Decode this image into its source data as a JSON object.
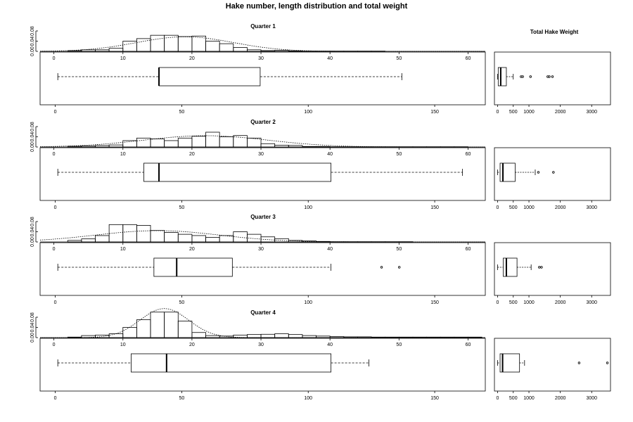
{
  "figure_title": "Hake number, length distribution and total weight",
  "weight_title": "Total Hake Weight",
  "chart_data": [
    {
      "type": "bar",
      "title": "Quarter 1",
      "hist_bins": [
        2,
        4,
        6,
        8,
        10,
        12,
        14,
        16,
        18,
        20,
        22,
        24,
        26,
        28,
        30,
        32,
        34,
        36,
        38,
        40,
        42,
        44,
        46,
        48,
        50,
        52,
        54
      ],
      "hist_density": [
        0.003,
        0.006,
        0.006,
        0.012,
        0.04,
        0.05,
        0.063,
        0.063,
        0.058,
        0.06,
        0.04,
        0.03,
        0.015,
        0.006,
        0.003,
        0.004,
        0.002,
        0.001,
        0.001,
        0.001,
        0.001,
        0.001,
        0.001,
        0,
        0,
        0
      ],
      "density_curve": {
        "mean": 19,
        "sd": 7
      },
      "hist_ylim": [
        0,
        0.08
      ],
      "hist_yticks": [
        "0.00",
        "0.04",
        "0.08"
      ],
      "hist_xlim": [
        -2,
        62.5
      ],
      "hist_xticks": [
        0,
        10,
        20,
        30,
        40,
        50,
        60
      ],
      "box": {
        "min": 1,
        "q1": 41,
        "median": 41,
        "q3": 81,
        "max": 137,
        "outliers": []
      },
      "box_xlim": [
        -6,
        170
      ],
      "box_xticks": [
        0,
        50,
        100,
        150
      ],
      "weight_box": {
        "min": 0,
        "q1": 20,
        "median": 100,
        "q3": 280,
        "max": 500,
        "outliers": [
          750,
          800,
          1050,
          1600,
          1650,
          1750
        ]
      },
      "weight_xlim": [
        -100,
        3600
      ],
      "weight_xticks": [
        0,
        500,
        1000,
        2000,
        3000
      ]
    },
    {
      "type": "bar",
      "title": "Quarter 2",
      "hist_bins": [
        2,
        4,
        6,
        8,
        10,
        12,
        14,
        16,
        18,
        20,
        22,
        24,
        26,
        28,
        30,
        32,
        34,
        36,
        38,
        40,
        42,
        44,
        46,
        48,
        50,
        52,
        54,
        56,
        58,
        60
      ],
      "hist_density": [
        0.003,
        0.004,
        0.006,
        0.008,
        0.025,
        0.035,
        0.032,
        0.025,
        0.035,
        0.042,
        0.058,
        0.04,
        0.045,
        0.035,
        0.013,
        0.007,
        0.006,
        0.002,
        0.002,
        0.001,
        0.001,
        0.001,
        0.001,
        0.001,
        0.001,
        0.001,
        0.001,
        0.001,
        0.001
      ],
      "density_curve": {
        "mean": 22,
        "sd": 9
      },
      "hist_ylim": [
        0,
        0.08
      ],
      "hist_yticks": [
        "0.00",
        "0.04",
        "0.08"
      ],
      "hist_xlim": [
        -2,
        62.5
      ],
      "hist_xticks": [
        0,
        10,
        20,
        30,
        40,
        50,
        60
      ],
      "box": {
        "min": 1,
        "q1": 35,
        "median": 41,
        "q3": 109,
        "max": 161,
        "outliers": []
      },
      "box_xlim": [
        -6,
        170
      ],
      "box_xticks": [
        0,
        50,
        100,
        150
      ],
      "weight_box": {
        "min": 0,
        "q1": 80,
        "median": 170,
        "q3": 560,
        "max": 1200,
        "outliers": [
          1300,
          1780
        ]
      },
      "weight_xlim": [
        -100,
        3600
      ],
      "weight_xticks": [
        0,
        500,
        1000,
        2000,
        3000
      ]
    },
    {
      "type": "bar",
      "title": "Quarter 3",
      "hist_bins": [
        2,
        4,
        6,
        8,
        10,
        12,
        14,
        16,
        18,
        20,
        22,
        24,
        26,
        28,
        30,
        32,
        34,
        36,
        38,
        40,
        42,
        44,
        46,
        48,
        50,
        52
      ],
      "hist_density": [
        0.006,
        0.012,
        0.025,
        0.068,
        0.068,
        0.065,
        0.045,
        0.037,
        0.03,
        0.025,
        0.018,
        0.025,
        0.04,
        0.03,
        0.02,
        0.013,
        0.006,
        0.004,
        0.002,
        0.001,
        0.001,
        0.001,
        0.001,
        0.001,
        0.001
      ],
      "density_curve": {
        "mean": 15,
        "sd": 9
      },
      "hist_ylim": [
        0,
        0.08
      ],
      "hist_yticks": [
        "0.00",
        "0.04",
        "0.08"
      ],
      "hist_xlim": [
        -2,
        62.5
      ],
      "hist_xticks": [
        0,
        10,
        20,
        30,
        40,
        50,
        60
      ],
      "box": {
        "min": 1,
        "q1": 39,
        "median": 48,
        "q3": 70,
        "max": 109,
        "outliers": [
          129,
          136
        ]
      },
      "box_xlim": [
        -6,
        170
      ],
      "box_xticks": [
        0,
        50,
        100,
        150
      ],
      "weight_box": {
        "min": 0,
        "q1": 180,
        "median": 280,
        "q3": 620,
        "max": 1070,
        "outliers": [
          1330,
          1400
        ]
      },
      "weight_xlim": [
        -100,
        3600
      ],
      "weight_xticks": [
        0,
        500,
        1000,
        2000,
        3000
      ]
    },
    {
      "type": "bar",
      "title": "Quarter 4",
      "hist_bins": [
        2,
        4,
        6,
        8,
        10,
        12,
        14,
        16,
        18,
        20,
        22,
        24,
        26,
        28,
        30,
        32,
        34,
        36,
        38,
        40,
        42,
        44,
        46,
        48,
        50,
        52,
        54,
        56,
        58,
        60,
        62
      ],
      "hist_density": [
        0.002,
        0.008,
        0.01,
        0.015,
        0.04,
        0.07,
        0.1,
        0.1,
        0.065,
        0.02,
        0.008,
        0.006,
        0.01,
        0.012,
        0.013,
        0.015,
        0.012,
        0.008,
        0.006,
        0.004,
        0.003,
        0.003,
        0.002,
        0.002,
        0.002,
        0.002,
        0.002,
        0.002,
        0.002,
        0.002
      ],
      "density_curve": {
        "mean": 16,
        "sd": 3.5
      },
      "hist_ylim": [
        0,
        0.08
      ],
      "hist_yticks": [
        "0.00",
        "0.04",
        "0.08"
      ],
      "hist_xlim": [
        -2,
        62.5
      ],
      "hist_xticks": [
        0,
        10,
        20,
        30,
        40,
        50,
        60
      ],
      "box": {
        "min": 1,
        "q1": 30,
        "median": 44,
        "q3": 109,
        "max": 124,
        "outliers": []
      },
      "box_xlim": [
        -6,
        170
      ],
      "box_xticks": [
        0,
        50,
        100,
        150
      ],
      "weight_box": {
        "min": 0,
        "q1": 80,
        "median": 160,
        "q3": 700,
        "max": 860,
        "outliers": [
          2600,
          3500
        ]
      },
      "weight_xlim": [
        -100,
        3600
      ],
      "weight_xticks": [
        0,
        500,
        1000,
        2000,
        3000
      ]
    }
  ]
}
